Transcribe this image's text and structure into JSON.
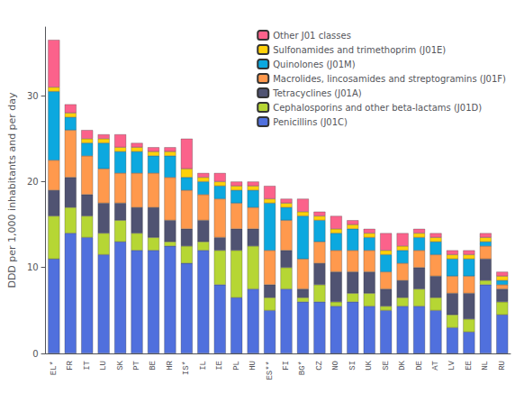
{
  "chart_data": {
    "type": "bar",
    "stacked": true,
    "grid": false,
    "legend": "upper right",
    "ylabel": "DDD per 1,000 inhabitants and per day",
    "ylim": [
      0,
      38
    ],
    "yticks": [
      0,
      10,
      20,
      30
    ],
    "categories": [
      "EL*",
      "FR",
      "IT",
      "LU",
      "SK",
      "PT",
      "BE",
      "HR",
      "IS*",
      "IL",
      "IE",
      "PL",
      "HU",
      "ES**",
      "FI",
      "BG*",
      "CZ",
      "NO",
      "SI",
      "UK",
      "SE",
      "DK",
      "DE",
      "AT",
      "LV",
      "EE",
      "NL",
      "RU"
    ],
    "series": [
      {
        "name": "Penicillins (J01C)",
        "values": [
          11.0,
          14.0,
          13.5,
          11.5,
          13.0,
          12.0,
          12.0,
          12.5,
          10.5,
          12.0,
          8.0,
          6.5,
          7.5,
          5.0,
          7.5,
          6.0,
          6.0,
          5.5,
          6.0,
          5.5,
          5.0,
          5.5,
          5.5,
          5.0,
          3.0,
          2.5,
          8.0,
          4.5
        ]
      },
      {
        "name": "Cephalosporins and other beta-lactams (J01D)",
        "values": [
          5.0,
          3.0,
          2.5,
          2.5,
          2.5,
          2.0,
          1.5,
          0.5,
          2.0,
          1.0,
          4.0,
          5.5,
          5.0,
          1.5,
          2.5,
          0.5,
          2.0,
          0.5,
          1.0,
          1.5,
          0.5,
          1.0,
          2.0,
          1.5,
          1.5,
          1.5,
          0.5,
          1.5
        ]
      },
      {
        "name": "Tetracyclines (J01A)",
        "values": [
          3.0,
          3.5,
          2.5,
          3.5,
          2.0,
          3.0,
          3.5,
          2.5,
          2.0,
          2.5,
          1.5,
          2.5,
          2.0,
          1.5,
          2.0,
          1.0,
          2.5,
          3.5,
          2.5,
          2.5,
          2.0,
          2.0,
          2.5,
          2.5,
          2.5,
          3.0,
          2.5,
          1.5
        ]
      },
      {
        "name": "Macrolides, lincosamides and streptogramins (J01F)",
        "values": [
          3.5,
          5.5,
          4.5,
          4.0,
          3.5,
          4.0,
          4.0,
          5.0,
          4.5,
          3.0,
          4.5,
          3.0,
          2.5,
          4.0,
          3.5,
          3.5,
          2.5,
          2.5,
          2.5,
          2.5,
          2.0,
          2.0,
          2.0,
          2.5,
          2.0,
          2.0,
          1.5,
          0.5
        ]
      },
      {
        "name": "Quinolones (J01M)",
        "values": [
          8.0,
          1.5,
          1.5,
          3.0,
          2.5,
          2.5,
          2.0,
          2.5,
          1.5,
          1.5,
          1.5,
          1.5,
          2.0,
          5.5,
          1.5,
          5.0,
          2.5,
          2.0,
          2.5,
          1.5,
          2.0,
          1.5,
          1.5,
          1.5,
          2.0,
          2.0,
          0.5,
          0.5
        ]
      },
      {
        "name": "Sulfonamides and trimethoprim (J01E)",
        "values": [
          0.5,
          0.5,
          0.5,
          0.5,
          0.5,
          0.5,
          0.5,
          0.5,
          1.0,
          0.5,
          0.5,
          0.5,
          0.5,
          0.5,
          0.5,
          0.5,
          0.5,
          0.5,
          0.5,
          0.5,
          0.5,
          0.5,
          0.5,
          0.5,
          0.5,
          0.5,
          0.5,
          0.5
        ]
      },
      {
        "name": "Other J01 classes",
        "values": [
          5.5,
          1.0,
          1.0,
          0.5,
          1.5,
          0.5,
          0.5,
          0.5,
          3.5,
          0.5,
          1.0,
          0.5,
          0.5,
          1.5,
          0.5,
          1.5,
          0.5,
          1.5,
          0.5,
          0.5,
          2.0,
          1.5,
          0.5,
          0.5,
          0.5,
          0.5,
          0.5,
          0.5
        ]
      }
    ]
  }
}
